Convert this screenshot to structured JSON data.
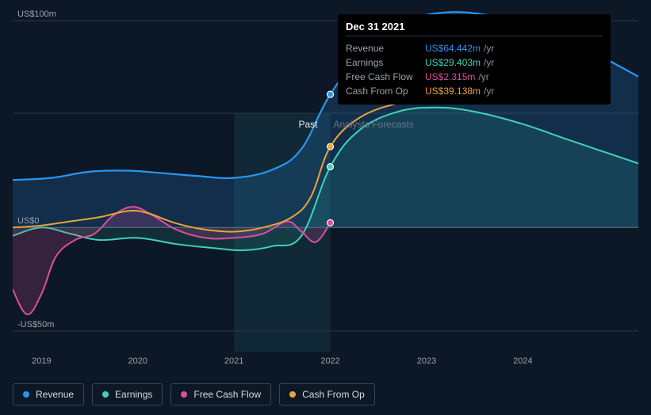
{
  "chart": {
    "type": "area",
    "background_color": "#0d1826",
    "grid_color": "#2c3845",
    "zero_line_color": "#4a5866",
    "past_band_color": "#1a4856",
    "past_band_opacity": 0.35,
    "section_label_past": "Past",
    "section_label_forecast": "Analysts Forecasts",
    "x_axis": {
      "range": [
        2018.7,
        2025.2
      ],
      "ticks": [
        2019,
        2020,
        2021,
        2022,
        2023,
        2024
      ],
      "labels": [
        "2019",
        "2020",
        "2021",
        "2022",
        "2023",
        "2024"
      ]
    },
    "y_axis": {
      "range": [
        -60,
        110
      ],
      "ticks": [
        -50,
        0,
        100
      ],
      "labels": [
        "-US$50m",
        "US$0",
        "US$100m"
      ]
    },
    "marker_x": 2022,
    "marker_radius": 4,
    "series": {
      "revenue": {
        "label": "Revenue",
        "color": "#2a96f0",
        "fill_opacity": 0.18,
        "line_width": 2.2,
        "data": [
          [
            2018.7,
            23
          ],
          [
            2019.1,
            24
          ],
          [
            2019.5,
            27
          ],
          [
            2019.9,
            27.5
          ],
          [
            2020.2,
            26.5
          ],
          [
            2020.6,
            25
          ],
          [
            2021.0,
            24
          ],
          [
            2021.4,
            28
          ],
          [
            2021.7,
            38
          ],
          [
            2022.0,
            64.4
          ],
          [
            2022.4,
            88
          ],
          [
            2022.8,
            100
          ],
          [
            2023.2,
            104
          ],
          [
            2023.6,
            103
          ],
          [
            2024.0,
            99
          ],
          [
            2024.4,
            92
          ],
          [
            2024.8,
            83
          ],
          [
            2025.2,
            73
          ]
        ]
      },
      "earnings": {
        "label": "Earnings",
        "color": "#3dd4b6",
        "fill_opacity": 0.12,
        "line_width": 2,
        "data": [
          [
            2018.7,
            -4
          ],
          [
            2019.0,
            0
          ],
          [
            2019.3,
            -3
          ],
          [
            2019.6,
            -6
          ],
          [
            2020.0,
            -5
          ],
          [
            2020.4,
            -8
          ],
          [
            2020.8,
            -10
          ],
          [
            2021.1,
            -11
          ],
          [
            2021.4,
            -9
          ],
          [
            2021.7,
            -4
          ],
          [
            2022.0,
            29.4
          ],
          [
            2022.3,
            47
          ],
          [
            2022.7,
            56
          ],
          [
            2023.1,
            58
          ],
          [
            2023.5,
            56
          ],
          [
            2024.0,
            50
          ],
          [
            2024.5,
            42
          ],
          [
            2025.2,
            31
          ]
        ]
      },
      "free_cash_flow": {
        "label": "Free Cash Flow",
        "color": "#d94f9f",
        "fill_opacity": 0.2,
        "line_width": 2,
        "data": [
          [
            2018.7,
            -30
          ],
          [
            2018.85,
            -42
          ],
          [
            2019.0,
            -32
          ],
          [
            2019.15,
            -14
          ],
          [
            2019.35,
            -6
          ],
          [
            2019.55,
            -3
          ],
          [
            2019.75,
            6
          ],
          [
            2019.95,
            10
          ],
          [
            2020.15,
            6
          ],
          [
            2020.4,
            -1
          ],
          [
            2020.7,
            -5
          ],
          [
            2021.0,
            -5
          ],
          [
            2021.3,
            -3
          ],
          [
            2021.55,
            3
          ],
          [
            2021.7,
            -2
          ],
          [
            2021.85,
            -7
          ],
          [
            2022.0,
            2.3
          ]
        ]
      },
      "cash_from_op": {
        "label": "Cash From Op",
        "color": "#e8a33d",
        "fill_opacity": 0.0,
        "line_width": 2,
        "data": [
          [
            2018.7,
            0
          ],
          [
            2019.0,
            1
          ],
          [
            2019.3,
            3
          ],
          [
            2019.6,
            5
          ],
          [
            2019.9,
            8
          ],
          [
            2020.1,
            7
          ],
          [
            2020.4,
            2
          ],
          [
            2020.7,
            -1
          ],
          [
            2021.0,
            -2
          ],
          [
            2021.3,
            0
          ],
          [
            2021.6,
            5
          ],
          [
            2021.8,
            15
          ],
          [
            2022.0,
            39.1
          ],
          [
            2022.3,
            53
          ],
          [
            2022.7,
            60
          ],
          [
            2023.1,
            62
          ],
          [
            2023.6,
            63
          ],
          [
            2024.0,
            63
          ],
          [
            2024.25,
            63.2
          ]
        ]
      }
    },
    "tooltip": {
      "date": "Dec 31 2021",
      "unit": "/yr",
      "rows": [
        {
          "key": "revenue",
          "label": "Revenue",
          "value": "US$64.442m",
          "color": "#2a96f0"
        },
        {
          "key": "earnings",
          "label": "Earnings",
          "value": "US$29.403m",
          "color": "#3dd4b6"
        },
        {
          "key": "free_cash_flow",
          "label": "Free Cash Flow",
          "value": "US$2.315m",
          "color": "#d94f9f"
        },
        {
          "key": "cash_from_op",
          "label": "Cash From Op",
          "value": "US$39.138m",
          "color": "#e8a33d"
        }
      ]
    },
    "legend_order": [
      "revenue",
      "earnings",
      "free_cash_flow",
      "cash_from_op"
    ]
  }
}
